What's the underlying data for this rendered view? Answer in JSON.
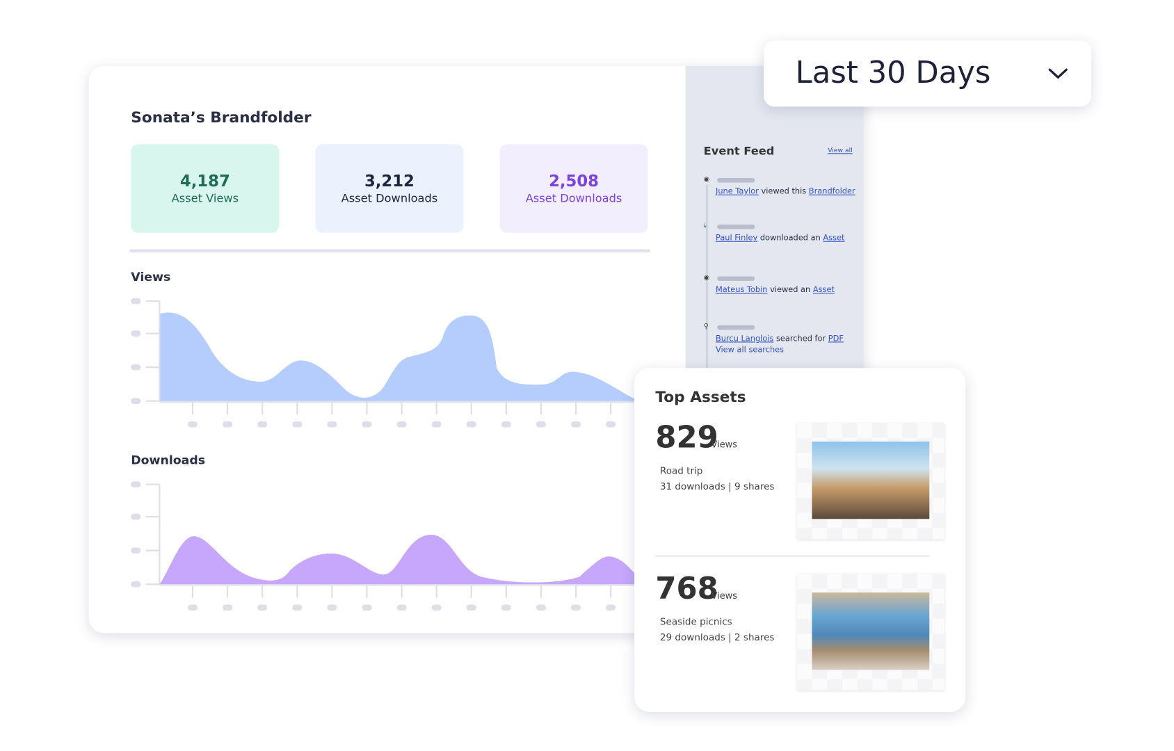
{
  "date_filter": "Last 30 Days",
  "dashboard": {
    "title": "Sonata’s Brandfolder",
    "stats": [
      {
        "value": "4,187",
        "label": "Asset Views"
      },
      {
        "value": "3,212",
        "label": "Asset Downloads"
      },
      {
        "value": "2,508",
        "label": "Asset Downloads"
      }
    ],
    "charts": [
      {
        "title": "Views"
      },
      {
        "title": "Downloads"
      }
    ]
  },
  "event_feed": {
    "title": "Event Feed",
    "view_all": "View all",
    "events": [
      {
        "user": "June Taylor",
        "action": "viewed this",
        "object": "Brandfolder"
      },
      {
        "user": "Paul Finley",
        "action": "downloaded an",
        "object": "Asset"
      },
      {
        "user": "Mateus Tobin",
        "action": "viewed an",
        "object": "Asset"
      },
      {
        "user": "Burcu Langlois",
        "action": "searched for",
        "object": "PDF",
        "extra": "View all searches"
      }
    ]
  },
  "top_assets": {
    "title": "Top Assets",
    "items": [
      {
        "value": "829",
        "unit": "Views",
        "name": "Road trip",
        "stats": "31 downloads | 9 shares"
      },
      {
        "value": "768",
        "unit": "Views",
        "name": "Seaside picnics",
        "stats": "29 downloads | 2 shares"
      }
    ]
  }
}
